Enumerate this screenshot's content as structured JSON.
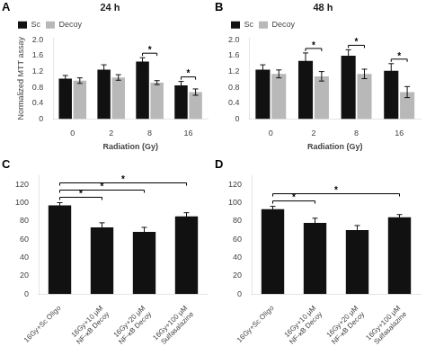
{
  "chart_data": [
    {
      "type": "bar",
      "title": "24 h",
      "xlabel": "Radiation (Gy)",
      "ylabel": "Normalized MTT assay",
      "categories": [
        "0",
        "2",
        "8",
        "16"
      ],
      "series": [
        {
          "name": "Sc",
          "color": "#111111",
          "values": [
            1.02,
            1.25,
            1.45,
            0.85
          ],
          "errors": [
            0.08,
            0.12,
            0.1,
            0.1
          ]
        },
        {
          "name": "Decoy",
          "color": "#b8b8b8",
          "values": [
            0.97,
            1.05,
            0.92,
            0.68
          ],
          "errors": [
            0.07,
            0.07,
            0.05,
            0.08
          ]
        }
      ],
      "ylim": [
        0,
        2.05
      ],
      "yticks": [
        0,
        0.4,
        0.8,
        1.2,
        1.6,
        {
          "value": 2,
          "label": "2.0"
        }
      ],
      "grid": false,
      "legend": "upper left",
      "annotations": [
        {
          "text": "A"
        },
        {
          "text": "*",
          "category": "8"
        },
        {
          "text": "*",
          "category": "16"
        }
      ]
    },
    {
      "type": "bar",
      "title": "48 h",
      "xlabel": "Radiation (Gy)",
      "categories": [
        "0",
        "2",
        "8",
        "16"
      ],
      "series": [
        {
          "name": "Sc",
          "color": "#111111",
          "values": [
            1.25,
            1.47,
            1.6,
            1.22
          ],
          "errors": [
            0.12,
            0.2,
            0.15,
            0.18
          ]
        },
        {
          "name": "Decoy",
          "color": "#b8b8b8",
          "values": [
            1.14,
            1.08,
            1.14,
            0.68
          ],
          "errors": [
            0.1,
            0.12,
            0.12,
            0.14
          ]
        }
      ],
      "ylim": [
        0,
        2.05
      ],
      "yticks": [
        0,
        0.4,
        0.8,
        1.2,
        1.6,
        {
          "value": 2,
          "label": "2.0"
        }
      ],
      "grid": false,
      "legend": "upper left",
      "annotations": [
        {
          "text": "B"
        },
        {
          "text": "*",
          "category": "2"
        },
        {
          "text": "*",
          "category": "8"
        },
        {
          "text": "*",
          "category": "16"
        }
      ]
    },
    {
      "type": "bar",
      "categories": [
        "16Gy+Sc Oligo",
        "16Gy+10 μM\nNF-κB Decoy",
        "16Gy+20 μM\nNF-κB Decoy",
        "16Gy+100 μM\nSulfasalazine"
      ],
      "values": [
        97,
        73,
        68,
        85
      ],
      "errors": [
        3,
        5,
        5,
        4
      ],
      "color": "#111111",
      "ylim": [
        0,
        130
      ],
      "yticks": [
        0,
        20,
        40,
        60,
        80,
        100,
        120
      ],
      "grid": false,
      "annotations": [
        {
          "text": "C"
        },
        {
          "text": "*",
          "between": [
            "16Gy+Sc Oligo",
            "16Gy+10 μM\nNF-κB Decoy"
          ]
        },
        {
          "text": "*",
          "between": [
            "16Gy+Sc Oligo",
            "16Gy+20 μM\nNF-κB Decoy"
          ]
        },
        {
          "text": "*",
          "between": [
            "16Gy+Sc Oligo",
            "16Gy+100 μM\nSulfasalazine"
          ]
        }
      ]
    },
    {
      "type": "bar",
      "categories": [
        "16Gy+Sc Oligo",
        "16Gy+10 μM\nNF-κB Decoy",
        "16Gy+20 μM\nNF-κB Decoy",
        "16Gy+100 μM\nSulfasalazine"
      ],
      "values": [
        93,
        78,
        70,
        84
      ],
      "errors": [
        3,
        5,
        5,
        3
      ],
      "color": "#111111",
      "ylim": [
        0,
        130
      ],
      "yticks": [
        0,
        20,
        40,
        60,
        80,
        100,
        120
      ],
      "grid": false,
      "annotations": [
        {
          "text": "D"
        },
        {
          "text": "*",
          "between": [
            "16Gy+Sc Oligo",
            "16Gy+10 μM\nNF-κB Decoy"
          ]
        },
        {
          "text": "*",
          "between": [
            "16Gy+Sc Oligo",
            "16Gy+100 μM\nSulfasalazine"
          ]
        }
      ]
    }
  ]
}
